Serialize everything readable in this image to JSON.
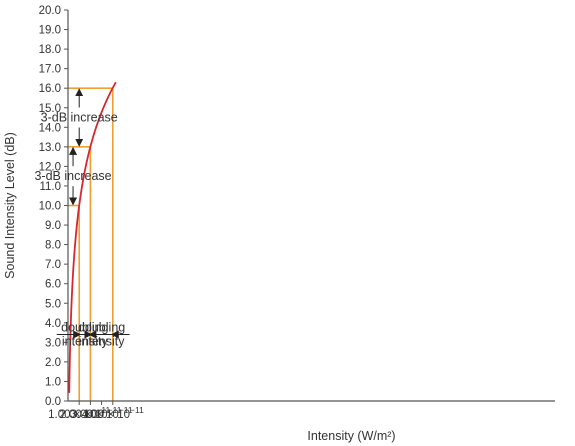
{
  "chart_data": {
    "type": "line",
    "title": "",
    "xlabel": "Intensity (W/m²)",
    "ylabel": "Sound Intensity Level (dB)",
    "xlim": [
      0,
      4.4e-11
    ],
    "ylim": [
      0,
      20
    ],
    "grid": false,
    "y_ticks": [
      "0.0",
      "1.0",
      "2.0",
      "3.0",
      "4.0",
      "5.0",
      "6.0",
      "7.0",
      "8.0",
      "9.0",
      "10.0",
      "11.0",
      "12.0",
      "13.0",
      "14.0",
      "15.0",
      "16.0",
      "17.0",
      "18.0",
      "19.0",
      "20.0"
    ],
    "x_ticks": [
      {
        "mantissa": "1.00",
        "exponent": "−11",
        "value": 1e-11
      },
      {
        "mantissa": "2.00",
        "exponent": "−11",
        "value": 2e-11
      },
      {
        "mantissa": "3.00",
        "exponent": "−11",
        "value": 3e-11
      },
      {
        "mantissa": "4.00",
        "exponent": "−11",
        "value": 4e-11
      }
    ],
    "curve": {
      "formula": "10*log10(I/1e-12)",
      "x_start": 1.1e-12,
      "x_end": 4.27e-11,
      "color": "#d8262e"
    },
    "reference_points": [
      {
        "x": 1e-11,
        "y": 10
      },
      {
        "x": 2e-11,
        "y": 13
      },
      {
        "x": 4e-11,
        "y": 16
      }
    ],
    "reference_line_color": "#f0a030",
    "annotations": [
      {
        "text": "3-dB increase",
        "y_from": 13,
        "y_to": 16,
        "x_at": 1e-11
      },
      {
        "text": "3-dB increase",
        "y_from": 10,
        "y_to": 13,
        "x_at": 4.5e-12
      },
      {
        "line1": "doubling",
        "line2": "intensity",
        "x_from": 1e-11,
        "x_to": 2e-11,
        "y_at": 3.4
      },
      {
        "line1": "doubling",
        "line2": "intensity",
        "x_from": 2e-11,
        "x_to": 4e-11,
        "y_at": 3.4
      }
    ]
  }
}
